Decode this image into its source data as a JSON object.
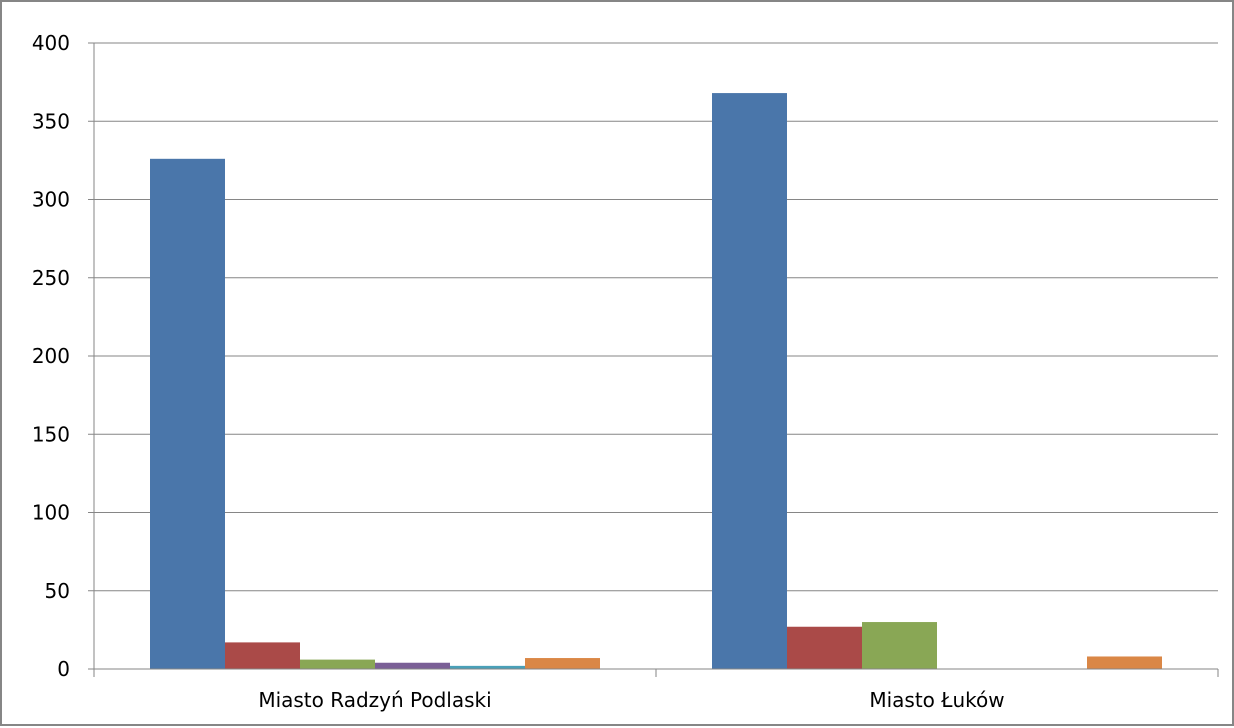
{
  "chart_data": {
    "type": "bar",
    "categories": [
      "Miasto Radzyń Podlaski",
      "Miasto Łuków"
    ],
    "series": [
      {
        "values": [
          326,
          368
        ],
        "color": "#4A76AA"
      },
      {
        "values": [
          17,
          27
        ],
        "color": "#AA4A48"
      },
      {
        "values": [
          6,
          30
        ],
        "color": "#89A755"
      },
      {
        "values": [
          4,
          0
        ],
        "color": "#7A5F96"
      },
      {
        "values": [
          2,
          0
        ],
        "color": "#4AA0B8"
      },
      {
        "values": [
          7,
          8
        ],
        "color": "#DA8746"
      }
    ],
    "y_ticks": [
      "0",
      "50",
      "100",
      "150",
      "200",
      "250",
      "300",
      "350",
      "400"
    ],
    "ylim": [
      0,
      400
    ],
    "grid": true,
    "legend": "none"
  }
}
